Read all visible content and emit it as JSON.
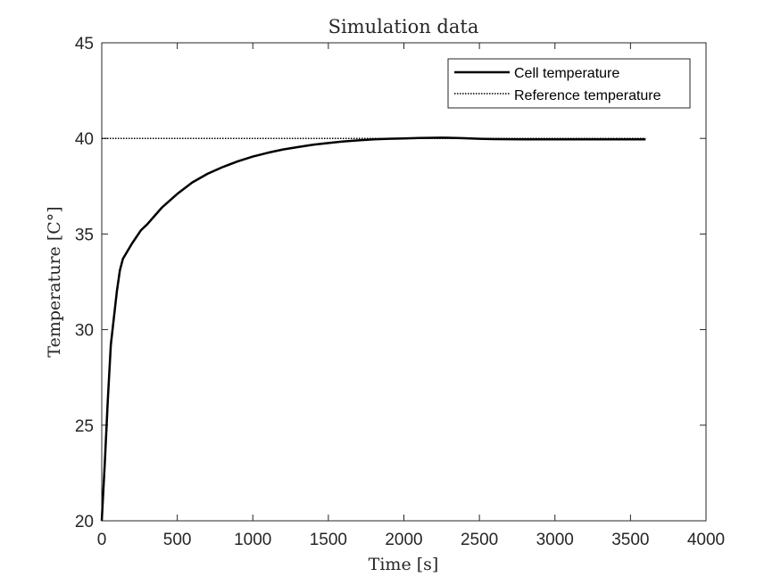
{
  "chart_data": {
    "type": "line",
    "title": "Simulation data",
    "xlabel": "Time [s]",
    "ylabel": "Temperature [C°]",
    "xlim": [
      0,
      4000
    ],
    "ylim": [
      20,
      45
    ],
    "xticks": [
      0,
      500,
      1000,
      1500,
      2000,
      2500,
      3000,
      3500,
      4000
    ],
    "yticks": [
      20,
      25,
      30,
      35,
      40,
      45
    ],
    "grid": false,
    "legend_position": "top-right",
    "series": [
      {
        "name": "Cell temperature",
        "style": "solid",
        "color": "#000000",
        "x": [
          0,
          20,
          40,
          60,
          80,
          100,
          120,
          140,
          200,
          260,
          300,
          400,
          500,
          600,
          700,
          800,
          900,
          1000,
          1100,
          1200,
          1300,
          1400,
          1500,
          1600,
          1700,
          1800,
          1900,
          2000,
          2100,
          2200,
          2250,
          2300,
          2400,
          2500,
          2600,
          2800,
          3000,
          3200,
          3400,
          3600
        ],
        "y": [
          20.0,
          23.0,
          26.3,
          29.2,
          30.6,
          32.0,
          33.1,
          33.7,
          34.5,
          35.2,
          35.5,
          36.4,
          37.1,
          37.7,
          38.15,
          38.5,
          38.8,
          39.05,
          39.25,
          39.42,
          39.55,
          39.67,
          39.76,
          39.84,
          39.9,
          39.95,
          39.98,
          40.0,
          40.02,
          40.03,
          40.04,
          40.03,
          40.01,
          39.98,
          39.96,
          39.95,
          39.95,
          39.95,
          39.95,
          39.95
        ]
      },
      {
        "name": "Reference temperature",
        "style": "dotted",
        "color": "#000000",
        "x": [
          0,
          3600
        ],
        "y": [
          40,
          40
        ]
      }
    ]
  }
}
